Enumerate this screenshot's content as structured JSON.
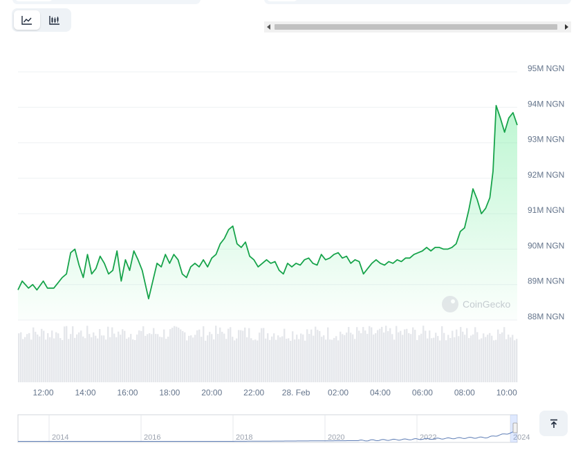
{
  "toolbar": {
    "line_icon": "line-chart-icon",
    "candle_icon": "candlestick-chart-icon"
  },
  "scroll_top_icon": "arrow-up-to-line-icon",
  "watermark": "CoinGecko",
  "colors": {
    "line": "#16a34a",
    "area_top": "#86efac",
    "volume": "#e5e7eb",
    "grid": "#eef0f3",
    "navigator_line": "#5b7bb4"
  },
  "chart_data": {
    "type": "area",
    "x_ticks": [
      "12:00",
      "14:00",
      "16:00",
      "18:00",
      "20:00",
      "22:00",
      "28. Feb",
      "02:00",
      "04:00",
      "06:00",
      "08:00",
      "10:00"
    ],
    "y_ticks": [
      "88M NGN",
      "89M NGN",
      "90M NGN",
      "91M NGN",
      "92M NGN",
      "93M NGN",
      "94M NGN",
      "95M NGN"
    ],
    "y_range": [
      88,
      95
    ],
    "x_range": [
      10.8,
      34.5
    ],
    "series": [
      {
        "points": [
          [
            10.8,
            88.85
          ],
          [
            11.0,
            89.1
          ],
          [
            11.3,
            88.9
          ],
          [
            11.5,
            89.0
          ],
          [
            11.7,
            88.85
          ],
          [
            12.0,
            89.1
          ],
          [
            12.2,
            88.9
          ],
          [
            12.5,
            88.9
          ],
          [
            12.7,
            89.05
          ],
          [
            12.9,
            89.2
          ],
          [
            13.1,
            89.3
          ],
          [
            13.3,
            89.9
          ],
          [
            13.5,
            90.0
          ],
          [
            13.7,
            89.55
          ],
          [
            13.9,
            89.2
          ],
          [
            14.1,
            89.85
          ],
          [
            14.3,
            89.3
          ],
          [
            14.5,
            89.45
          ],
          [
            14.7,
            89.8
          ],
          [
            14.9,
            89.6
          ],
          [
            15.1,
            89.3
          ],
          [
            15.3,
            89.4
          ],
          [
            15.5,
            89.95
          ],
          [
            15.7,
            89.1
          ],
          [
            15.9,
            89.7
          ],
          [
            16.1,
            89.4
          ],
          [
            16.3,
            89.95
          ],
          [
            16.5,
            89.7
          ],
          [
            16.7,
            89.4
          ],
          [
            16.85,
            89.0
          ],
          [
            17.0,
            88.6
          ],
          [
            17.2,
            89.1
          ],
          [
            17.4,
            89.6
          ],
          [
            17.6,
            89.5
          ],
          [
            17.8,
            89.85
          ],
          [
            18.0,
            89.6
          ],
          [
            18.2,
            89.85
          ],
          [
            18.4,
            89.7
          ],
          [
            18.6,
            89.3
          ],
          [
            18.8,
            89.2
          ],
          [
            19.0,
            89.5
          ],
          [
            19.2,
            89.6
          ],
          [
            19.4,
            89.5
          ],
          [
            19.6,
            89.7
          ],
          [
            19.8,
            89.5
          ],
          [
            20.0,
            89.75
          ],
          [
            20.2,
            89.85
          ],
          [
            20.4,
            90.15
          ],
          [
            20.6,
            90.3
          ],
          [
            20.8,
            90.55
          ],
          [
            21.0,
            90.65
          ],
          [
            21.2,
            90.15
          ],
          [
            21.4,
            90.05
          ],
          [
            21.6,
            90.2
          ],
          [
            21.8,
            89.8
          ],
          [
            22.0,
            89.7
          ],
          [
            22.2,
            89.5
          ],
          [
            22.4,
            89.6
          ],
          [
            22.6,
            89.7
          ],
          [
            22.8,
            89.6
          ],
          [
            23.0,
            89.65
          ],
          [
            23.2,
            89.4
          ],
          [
            23.4,
            89.3
          ],
          [
            23.6,
            89.6
          ],
          [
            23.8,
            89.5
          ],
          [
            24.0,
            89.6
          ],
          [
            24.2,
            89.55
          ],
          [
            24.4,
            89.7
          ],
          [
            24.6,
            89.75
          ],
          [
            24.8,
            89.6
          ],
          [
            25.0,
            89.55
          ],
          [
            25.2,
            89.85
          ],
          [
            25.4,
            89.7
          ],
          [
            25.6,
            89.75
          ],
          [
            25.8,
            89.85
          ],
          [
            26.0,
            89.9
          ],
          [
            26.2,
            89.75
          ],
          [
            26.4,
            89.8
          ],
          [
            26.6,
            89.6
          ],
          [
            26.8,
            89.7
          ],
          [
            27.0,
            89.65
          ],
          [
            27.2,
            89.3
          ],
          [
            27.4,
            89.45
          ],
          [
            27.6,
            89.6
          ],
          [
            27.8,
            89.7
          ],
          [
            28.0,
            89.6
          ],
          [
            28.2,
            89.55
          ],
          [
            28.4,
            89.65
          ],
          [
            28.6,
            89.6
          ],
          [
            28.8,
            89.7
          ],
          [
            29.0,
            89.65
          ],
          [
            29.2,
            89.75
          ],
          [
            29.4,
            89.75
          ],
          [
            29.6,
            89.85
          ],
          [
            29.8,
            89.9
          ],
          [
            30.0,
            89.95
          ],
          [
            30.2,
            90.05
          ],
          [
            30.4,
            89.95
          ],
          [
            30.6,
            90.05
          ],
          [
            30.8,
            90.05
          ],
          [
            31.0,
            90.0
          ],
          [
            31.2,
            90.0
          ],
          [
            31.4,
            90.05
          ],
          [
            31.6,
            90.15
          ],
          [
            31.8,
            90.5
          ],
          [
            32.0,
            90.6
          ],
          [
            32.2,
            91.1
          ],
          [
            32.4,
            91.7
          ],
          [
            32.6,
            91.4
          ],
          [
            32.8,
            91.0
          ],
          [
            33.0,
            91.15
          ],
          [
            33.2,
            91.45
          ],
          [
            33.35,
            92.2
          ],
          [
            33.5,
            94.05
          ],
          [
            33.7,
            93.7
          ],
          [
            33.9,
            93.3
          ],
          [
            34.1,
            93.7
          ],
          [
            34.3,
            93.85
          ],
          [
            34.5,
            93.5
          ]
        ]
      }
    ],
    "navigator": {
      "x_ticks": [
        "2014",
        "2016",
        "2018",
        "2020",
        "2022",
        "2024"
      ]
    }
  }
}
